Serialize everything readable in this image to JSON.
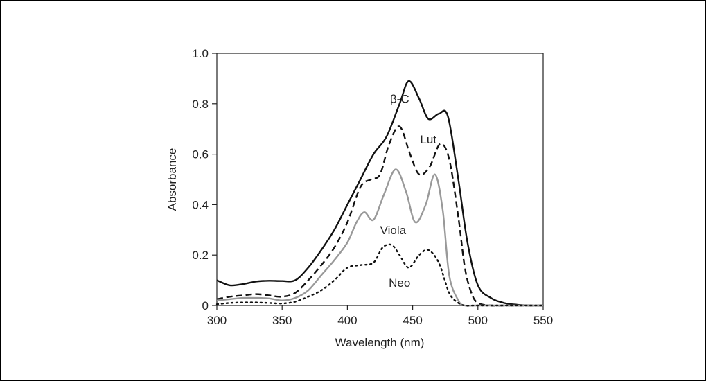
{
  "chart_data": {
    "type": "line",
    "title": "",
    "xlabel": "Wavelength (nm)",
    "ylabel": "Absorbance",
    "xlim": [
      300,
      550
    ],
    "ylim": [
      0,
      1.0
    ],
    "xticks": [
      300,
      350,
      400,
      450,
      500,
      550
    ],
    "yticks": [
      {
        "value": 0,
        "label": "0"
      },
      {
        "value": 0.2,
        "label": "0.2"
      },
      {
        "value": 0.4,
        "label": "0.4"
      },
      {
        "value": 0.6,
        "label": "0.6"
      },
      {
        "value": 0.8,
        "label": "0.8"
      },
      {
        "value": 1.0,
        "label": "1.0"
      }
    ],
    "grid": false,
    "legend": "none",
    "series": [
      {
        "name": "β-C",
        "label_at": [
          440,
          0.82
        ],
        "style": "solid",
        "color": "#111111",
        "x": [
          300,
          310,
          320,
          330,
          340,
          350,
          360,
          370,
          380,
          390,
          400,
          410,
          420,
          430,
          440,
          447,
          455,
          462,
          470,
          477,
          485,
          492,
          500,
          510,
          520,
          530,
          540,
          550
        ],
        "y": [
          0.1,
          0.08,
          0.085,
          0.095,
          0.098,
          0.097,
          0.1,
          0.15,
          0.22,
          0.3,
          0.4,
          0.5,
          0.6,
          0.67,
          0.8,
          0.89,
          0.82,
          0.74,
          0.76,
          0.75,
          0.5,
          0.25,
          0.08,
          0.03,
          0.01,
          0.003,
          0.0,
          0.0
        ]
      },
      {
        "name": "Lut",
        "label_at": [
          462,
          0.66
        ],
        "style": "dashed",
        "color": "#111111",
        "x": [
          300,
          310,
          320,
          330,
          340,
          350,
          360,
          370,
          380,
          390,
          400,
          410,
          418,
          425,
          432,
          440,
          448,
          455,
          463,
          471,
          478,
          485,
          490,
          495,
          500,
          510,
          520,
          530,
          550
        ],
        "y": [
          0.025,
          0.035,
          0.04,
          0.045,
          0.04,
          0.035,
          0.05,
          0.1,
          0.16,
          0.23,
          0.33,
          0.47,
          0.5,
          0.52,
          0.64,
          0.71,
          0.6,
          0.52,
          0.55,
          0.64,
          0.58,
          0.35,
          0.15,
          0.05,
          0.01,
          0.0,
          0.0,
          0.0,
          0.0
        ]
      },
      {
        "name": "Viola",
        "label_at": [
          435,
          0.3
        ],
        "style": "solid",
        "color": "#999999",
        "x": [
          300,
          310,
          320,
          330,
          340,
          350,
          360,
          370,
          380,
          390,
          400,
          407,
          413,
          420,
          428,
          437,
          445,
          452,
          460,
          467,
          473,
          478,
          485,
          490,
          500,
          550
        ],
        "y": [
          0.02,
          0.025,
          0.03,
          0.03,
          0.028,
          0.02,
          0.03,
          0.06,
          0.12,
          0.18,
          0.25,
          0.33,
          0.37,
          0.34,
          0.44,
          0.54,
          0.45,
          0.33,
          0.4,
          0.52,
          0.38,
          0.12,
          0.02,
          0.0,
          0.0,
          0.0
        ]
      },
      {
        "name": "Neo",
        "label_at": [
          440,
          0.09
        ],
        "style": "dotted",
        "color": "#111111",
        "x": [
          300,
          310,
          320,
          330,
          340,
          350,
          360,
          370,
          380,
          390,
          400,
          410,
          420,
          427,
          434,
          440,
          447,
          455,
          462,
          470,
          478,
          485,
          490,
          500,
          550
        ],
        "y": [
          0.005,
          0.01,
          0.012,
          0.012,
          0.01,
          0.008,
          0.015,
          0.035,
          0.06,
          0.1,
          0.15,
          0.16,
          0.17,
          0.23,
          0.24,
          0.2,
          0.15,
          0.2,
          0.22,
          0.17,
          0.05,
          0.01,
          0.0,
          0.0,
          0.0
        ]
      }
    ]
  }
}
